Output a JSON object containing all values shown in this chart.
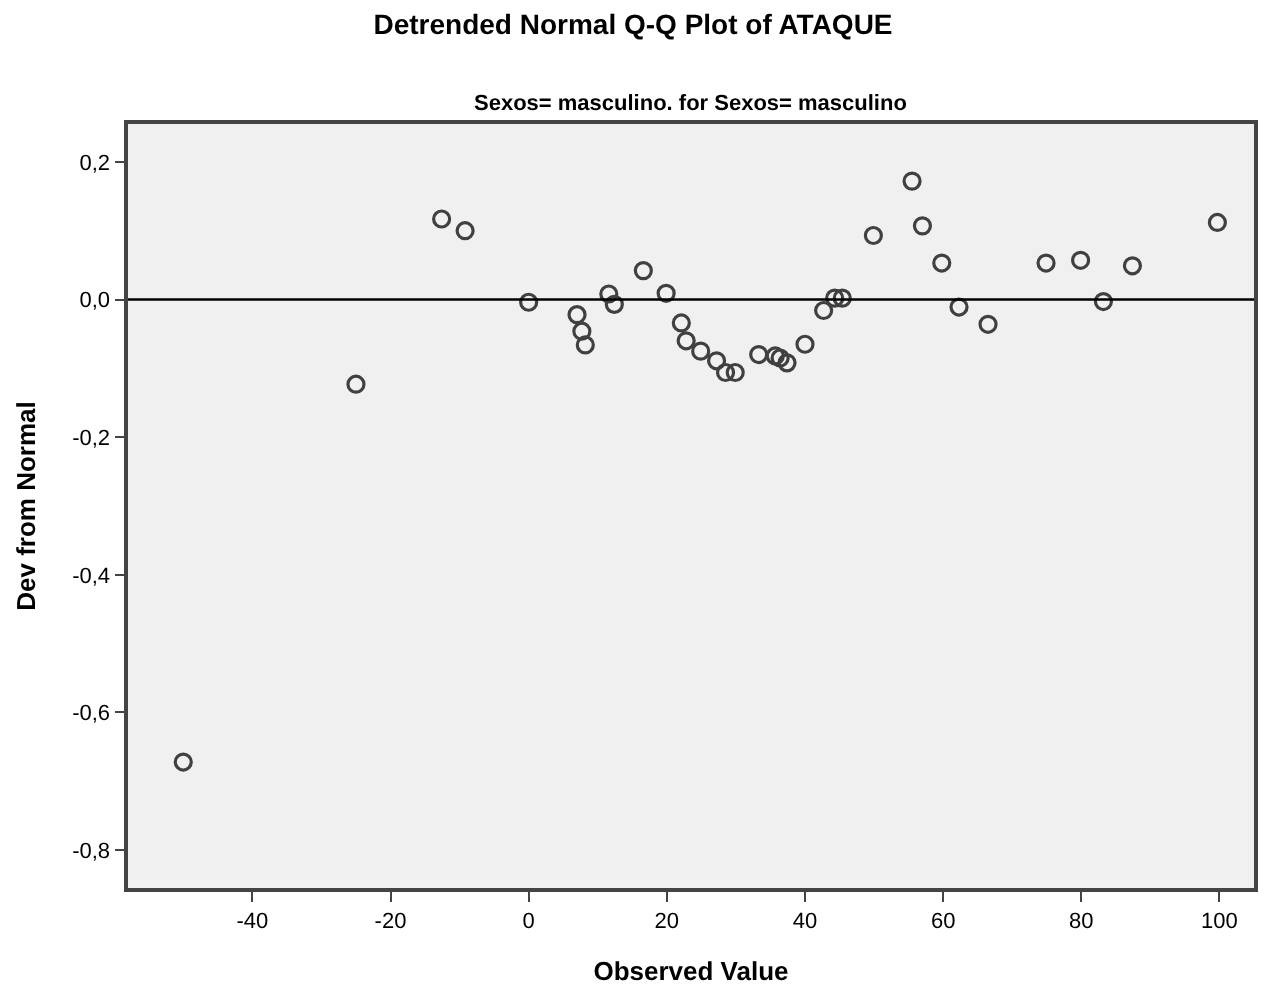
{
  "chart_data": {
    "type": "scatter",
    "title": "Detrended Normal Q-Q Plot of ATAQUE",
    "subtitle": "Sexos= masculino. for Sexos= masculino",
    "xlabel": "Observed Value",
    "ylabel": "Dev from Normal",
    "x": [
      -50,
      -25.0,
      -12.6,
      -9.2,
      0,
      7.0,
      7.7,
      8.2,
      11.6,
      12.4,
      16.6,
      19.9,
      22.1,
      22.8,
      24.9,
      27.2,
      28.5,
      29.9,
      33.3,
      35.7,
      36.4,
      37.4,
      40.0,
      42.7,
      44.3,
      45.4,
      49.9,
      55.5,
      57.0,
      59.8,
      62.3,
      66.5,
      74.9,
      79.9,
      83.2,
      87.4,
      99.7
    ],
    "values": [
      -0.672,
      -0.123,
      0.117,
      0.1,
      -0.004,
      -0.022,
      -0.046,
      -0.066,
      0.008,
      -0.007,
      0.042,
      0.009,
      -0.034,
      -0.06,
      -0.075,
      -0.089,
      -0.106,
      -0.106,
      -0.08,
      -0.082,
      -0.085,
      -0.092,
      -0.065,
      -0.016,
      0.002,
      0.002,
      0.093,
      0.172,
      0.107,
      0.053,
      -0.011,
      -0.036,
      0.053,
      0.057,
      -0.003,
      0.049,
      0.112
    ],
    "color": "#404040",
    "marker": "circle",
    "xlim": [
      -58,
      105
    ],
    "ylim": [
      -0.855,
      0.255
    ],
    "xticks": [
      -40,
      -20,
      0,
      20,
      40,
      60,
      80,
      100
    ],
    "yticks": [
      {
        "value": 0.2,
        "label": "0,2"
      },
      {
        "value": 0.0,
        "label": "0,0"
      },
      {
        "value": -0.2,
        "label": "-0,2"
      },
      {
        "value": -0.4,
        "label": "-0,4"
      },
      {
        "value": -0.6,
        "label": "-0,6"
      },
      {
        "value": -0.8,
        "label": "-0,8"
      }
    ],
    "ref_lines": [
      {
        "axis": "y",
        "value": 0,
        "color": "#000000"
      }
    ],
    "grid": false
  }
}
